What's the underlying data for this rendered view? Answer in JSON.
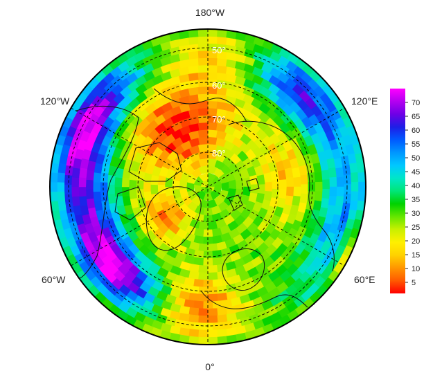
{
  "map": {
    "projection": "north-polar-stereographic",
    "longitude_labels": {
      "top": "180°W",
      "upper_left": "120°W",
      "upper_right": "120°E",
      "lower_left": "60°W",
      "lower_right": "60°E",
      "bottom": "0°"
    },
    "latitude_labels": [
      "50°",
      "60°",
      "70°",
      "80°"
    ],
    "grid": true,
    "grid_style": "dashed",
    "coastlines": true,
    "country_borders": true
  },
  "colorbar": {
    "min": 1,
    "max": 75,
    "ticks": [
      "5",
      "10",
      "15",
      "20",
      "25",
      "30",
      "35",
      "40",
      "45",
      "50",
      "55",
      "60",
      "65",
      "70"
    ],
    "colormap": [
      "#ff0000",
      "#ff5a00",
      "#ff9600",
      "#ffd200",
      "#fff000",
      "#c8f000",
      "#64e600",
      "#00d200",
      "#00e678",
      "#00e6c8",
      "#00c8ff",
      "#0096ff",
      "#005aff",
      "#1e1ee6",
      "#6e00e6",
      "#b400f0",
      "#ff00ff"
    ],
    "placement": "right"
  }
}
